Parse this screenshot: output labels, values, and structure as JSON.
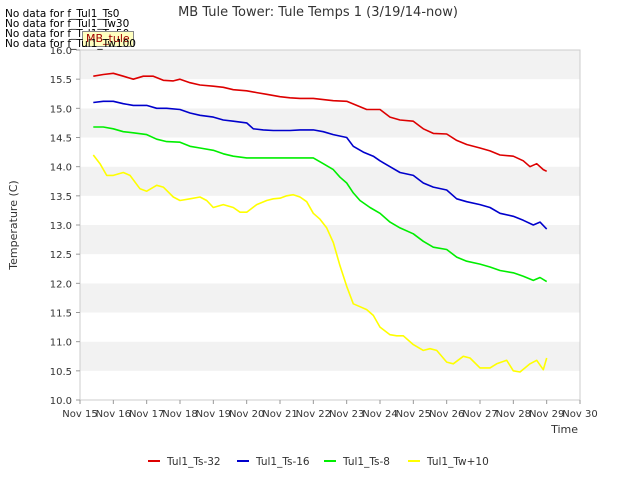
{
  "chart_data": {
    "type": "line",
    "title": "MB Tule Tower: Tule Temps 1 (3/19/14-now)",
    "xlabel": "Time",
    "ylabel": "Temperature (C)",
    "xlim": [
      15,
      30
    ],
    "ylim": [
      10.0,
      16.0
    ],
    "x_ticks": [
      15,
      16,
      17,
      18,
      19,
      20,
      21,
      22,
      23,
      24,
      25,
      26,
      27,
      28,
      29,
      30
    ],
    "x_tick_labels": [
      "Nov 15",
      "Nov 16",
      "Nov 17",
      "Nov 18",
      "Nov 19",
      "Nov 20",
      "Nov 21",
      "Nov 22",
      "Nov 23",
      "Nov 24",
      "Nov 25",
      "Nov 26",
      "Nov 27",
      "Nov 28",
      "Nov 29",
      "Nov 30"
    ],
    "y_ticks": [
      10.0,
      10.5,
      11.0,
      11.5,
      12.0,
      12.5,
      13.0,
      13.5,
      14.0,
      14.5,
      15.0,
      15.5,
      16.0
    ],
    "y_tick_labels": [
      "10.0",
      "10.5",
      "11.0",
      "11.5",
      "12.0",
      "12.5",
      "13.0",
      "13.5",
      "14.0",
      "14.5",
      "15.0",
      "15.5",
      "16.0"
    ],
    "legend_position": "bottom",
    "series": [
      {
        "name": "Tul1_Ts-32",
        "color": "#dd0000",
        "x": [
          15.4,
          15.7,
          16.0,
          16.3,
          16.6,
          16.9,
          17.2,
          17.5,
          17.8,
          18.0,
          18.3,
          18.6,
          19.0,
          19.3,
          19.6,
          20.0,
          20.3,
          20.6,
          21.0,
          21.3,
          21.6,
          22.0,
          22.3,
          22.6,
          23.0,
          23.3,
          23.6,
          24.0,
          24.3,
          24.6,
          25.0,
          25.3,
          25.6,
          26.0,
          26.3,
          26.6,
          27.0,
          27.3,
          27.6,
          28.0,
          28.3,
          28.5,
          28.7,
          28.9,
          29.0
        ],
        "y": [
          15.55,
          15.58,
          15.6,
          15.55,
          15.5,
          15.55,
          15.55,
          15.48,
          15.47,
          15.5,
          15.44,
          15.4,
          15.38,
          15.36,
          15.32,
          15.3,
          15.27,
          15.24,
          15.2,
          15.18,
          15.17,
          15.17,
          15.15,
          15.13,
          15.12,
          15.05,
          14.98,
          14.98,
          14.85,
          14.8,
          14.78,
          14.65,
          14.57,
          14.56,
          14.45,
          14.38,
          14.32,
          14.27,
          14.2,
          14.18,
          14.1,
          14.0,
          14.05,
          13.95,
          13.92
        ]
      },
      {
        "name": "Tul1_Ts-16",
        "color": "#0000cc",
        "x": [
          15.4,
          15.7,
          16.0,
          16.3,
          16.6,
          17.0,
          17.3,
          17.6,
          18.0,
          18.3,
          18.6,
          19.0,
          19.3,
          19.6,
          20.0,
          20.2,
          20.5,
          20.8,
          21.0,
          21.3,
          21.6,
          22.0,
          22.3,
          22.6,
          23.0,
          23.2,
          23.5,
          23.8,
          24.0,
          24.3,
          24.6,
          25.0,
          25.3,
          25.6,
          26.0,
          26.3,
          26.6,
          27.0,
          27.3,
          27.6,
          28.0,
          28.3,
          28.6,
          28.8,
          29.0
        ],
        "y": [
          15.1,
          15.12,
          15.12,
          15.08,
          15.05,
          15.05,
          15.0,
          15.0,
          14.98,
          14.92,
          14.88,
          14.85,
          14.8,
          14.78,
          14.75,
          14.65,
          14.63,
          14.62,
          14.62,
          14.62,
          14.63,
          14.63,
          14.6,
          14.55,
          14.5,
          14.35,
          14.25,
          14.18,
          14.1,
          14.0,
          13.9,
          13.85,
          13.72,
          13.65,
          13.6,
          13.45,
          13.4,
          13.35,
          13.3,
          13.2,
          13.15,
          13.08,
          13.0,
          13.05,
          12.93
        ]
      },
      {
        "name": "Tul1_Ts-8",
        "color": "#00ee00",
        "x": [
          15.4,
          15.7,
          16.0,
          16.3,
          16.6,
          17.0,
          17.3,
          17.6,
          18.0,
          18.3,
          18.6,
          19.0,
          19.3,
          19.6,
          20.0,
          20.3,
          20.6,
          21.0,
          21.3,
          21.6,
          22.0,
          22.3,
          22.6,
          22.8,
          23.0,
          23.2,
          23.4,
          23.7,
          24.0,
          24.3,
          24.6,
          25.0,
          25.3,
          25.6,
          26.0,
          26.3,
          26.6,
          27.0,
          27.3,
          27.6,
          28.0,
          28.3,
          28.6,
          28.8,
          29.0
        ],
        "y": [
          14.68,
          14.68,
          14.65,
          14.6,
          14.58,
          14.55,
          14.47,
          14.43,
          14.42,
          14.35,
          14.32,
          14.28,
          14.22,
          14.18,
          14.15,
          14.15,
          14.15,
          14.15,
          14.15,
          14.15,
          14.15,
          14.05,
          13.95,
          13.82,
          13.72,
          13.55,
          13.42,
          13.3,
          13.2,
          13.05,
          12.95,
          12.85,
          12.72,
          12.62,
          12.58,
          12.45,
          12.38,
          12.33,
          12.28,
          12.22,
          12.18,
          12.12,
          12.05,
          12.1,
          12.03
        ]
      },
      {
        "name": "Tul1_Tw+10",
        "color": "#ffff00",
        "x": [
          15.4,
          15.6,
          15.8,
          16.0,
          16.3,
          16.5,
          16.8,
          17.0,
          17.3,
          17.5,
          17.8,
          18.0,
          18.3,
          18.6,
          18.8,
          19.0,
          19.3,
          19.6,
          19.8,
          20.0,
          20.3,
          20.6,
          20.8,
          21.0,
          21.2,
          21.4,
          21.6,
          21.8,
          22.0,
          22.2,
          22.4,
          22.6,
          22.8,
          23.0,
          23.2,
          23.4,
          23.6,
          23.8,
          24.0,
          24.3,
          24.5,
          24.7,
          25.0,
          25.3,
          25.5,
          25.7,
          26.0,
          26.2,
          26.5,
          26.7,
          27.0,
          27.3,
          27.5,
          27.8,
          28.0,
          28.2,
          28.5,
          28.7,
          28.9,
          29.0
        ],
        "y": [
          14.2,
          14.05,
          13.85,
          13.85,
          13.9,
          13.85,
          13.62,
          13.58,
          13.68,
          13.65,
          13.48,
          13.42,
          13.45,
          13.48,
          13.42,
          13.3,
          13.35,
          13.3,
          13.22,
          13.22,
          13.35,
          13.42,
          13.45,
          13.46,
          13.5,
          13.52,
          13.48,
          13.4,
          13.2,
          13.1,
          12.95,
          12.7,
          12.3,
          11.95,
          11.65,
          11.6,
          11.55,
          11.45,
          11.25,
          11.12,
          11.1,
          11.1,
          10.95,
          10.85,
          10.88,
          10.85,
          10.65,
          10.62,
          10.75,
          10.72,
          10.55,
          10.55,
          10.62,
          10.68,
          10.5,
          10.48,
          10.62,
          10.68,
          10.52,
          10.72
        ]
      }
    ]
  },
  "no_data_messages": [
    "No data for f_Tul1_Ts0",
    "No data for f_Tul1_Tw30",
    "No data for f_Tul1_Tw50",
    "No data for f_Tul1_Tw100"
  ],
  "badge_label": "MB_tule"
}
